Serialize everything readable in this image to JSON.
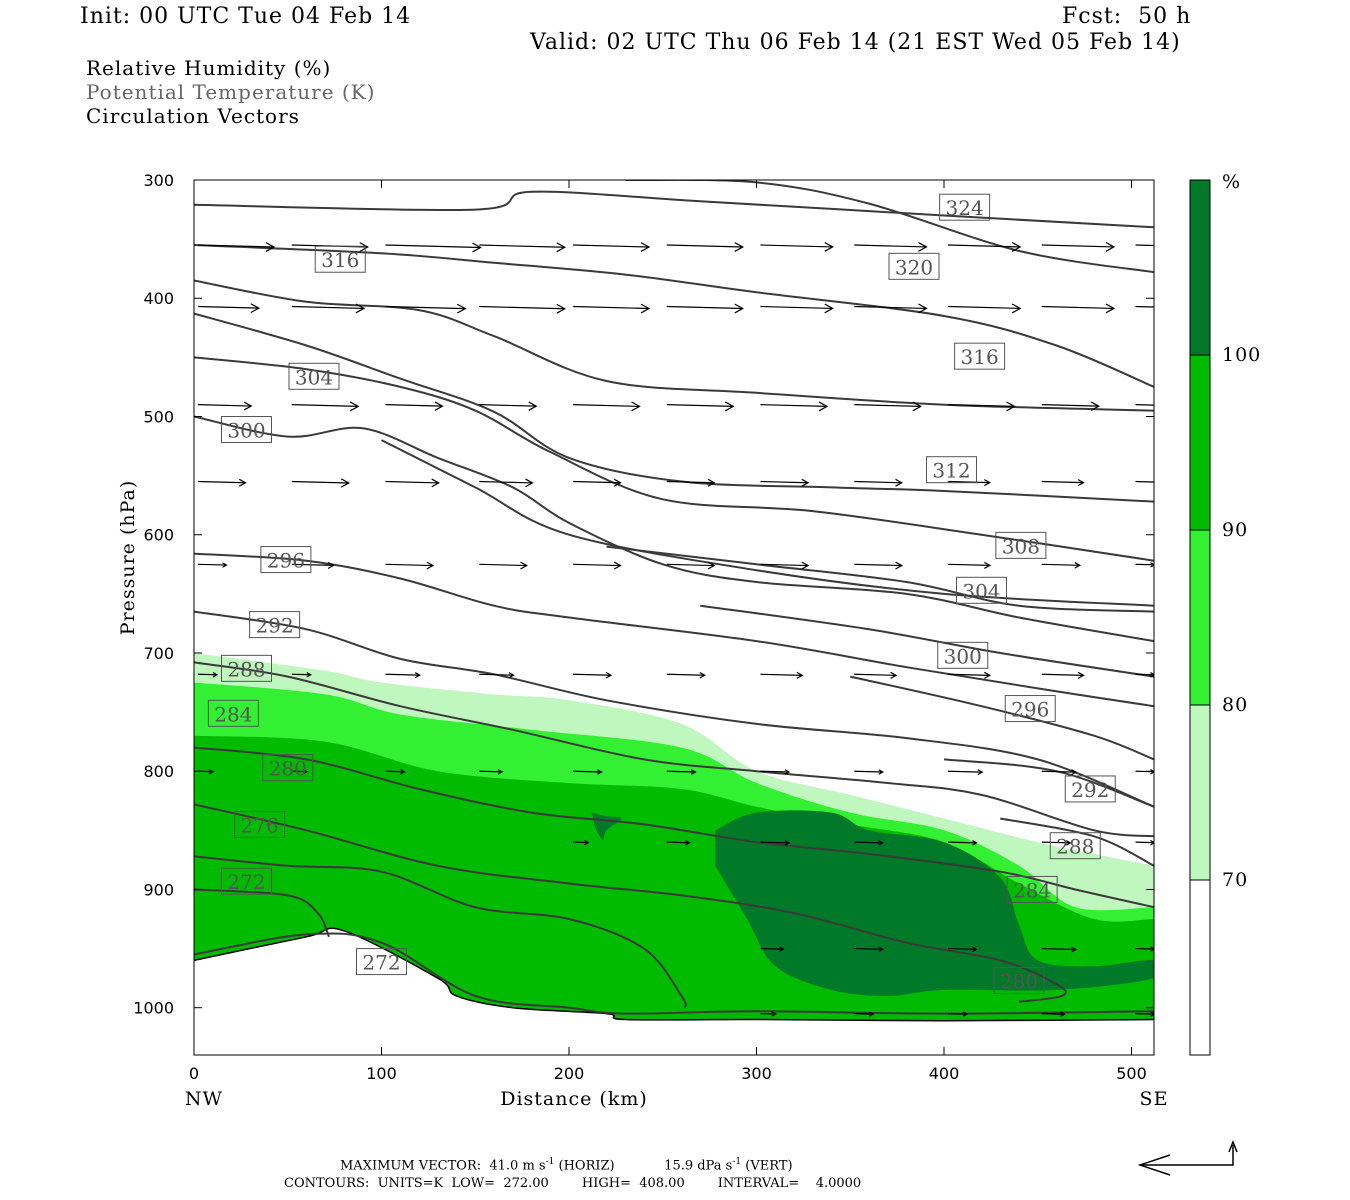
{
  "header": {
    "init": "Init: 00 UTC Tue 04 Feb 14",
    "fcst": "Fcst:  50 h",
    "valid": "Valid: 02 UTC Thu 06 Feb 14 (21 EST Wed 05 Feb 14)",
    "fields": [
      "Relative Humidity (%)",
      "Potential Temperature (K)",
      "Circulation Vectors"
    ]
  },
  "footer": {
    "max_vector": "MAXIMUM VECTOR:  41.0 m s",
    "max_vector_sup": "-1",
    "max_vector_horiz": " (HORIZ)",
    "max_vector_vert": "15.9 dPa s",
    "max_vector_vert_sup": "-1",
    "max_vector_vert_suffix": " (VERT)",
    "contours": "CONTOURS:  UNITS=K  LOW=  272.00        HIGH=  408.00        INTERVAL=    4.0000"
  },
  "colors": {
    "rh_70": "#bff7bf",
    "rh_80": "#33f033",
    "rh_90": "#00bb00",
    "rh_100": "#007a28",
    "theta_line": "#3a3a3a",
    "theta_label": "#555555"
  },
  "chart_data": {
    "type": "cross-section",
    "xlabel": "Distance (km)",
    "ylabel": "Pressure (hPa)",
    "x_ticks": [
      0,
      100,
      200,
      300,
      400,
      500
    ],
    "y_ticks": [
      300,
      400,
      500,
      600,
      700,
      800,
      900,
      1000
    ],
    "xlim": [
      0,
      512
    ],
    "ylim": [
      1040,
      300
    ],
    "x_end_labels": {
      "left": "NW",
      "right": "SE"
    },
    "colorbar": {
      "unit": "%",
      "levels": [
        70,
        80,
        90,
        100
      ]
    },
    "rh_shading": [
      {
        "level": 70,
        "top": [
          [
            0,
            700
          ],
          [
            70,
            715
          ],
          [
            100,
            725
          ],
          [
            160,
            735
          ],
          [
            200,
            740
          ],
          [
            260,
            760
          ],
          [
            300,
            800
          ],
          [
            350,
            820
          ],
          [
            400,
            840
          ],
          [
            450,
            860
          ],
          [
            480,
            870
          ],
          [
            512,
            880
          ]
        ]
      },
      {
        "level": 80,
        "top": [
          [
            0,
            725
          ],
          [
            70,
            735
          ],
          [
            110,
            752
          ],
          [
            180,
            765
          ],
          [
            260,
            780
          ],
          [
            300,
            810
          ],
          [
            350,
            835
          ],
          [
            400,
            850
          ],
          [
            440,
            880
          ],
          [
            470,
            915
          ],
          [
            512,
            915
          ]
        ]
      },
      {
        "level": 90,
        "top": [
          [
            0,
            770
          ],
          [
            70,
            775
          ],
          [
            130,
            800
          ],
          [
            200,
            810
          ],
          [
            260,
            815
          ],
          [
            300,
            830
          ],
          [
            350,
            845
          ],
          [
            400,
            860
          ],
          [
            440,
            895
          ],
          [
            480,
            925
          ],
          [
            512,
            925
          ]
        ]
      }
    ],
    "theta_contours": [
      {
        "label": "324",
        "label_at": [
          411,
          323
        ],
        "points": [
          [
            0,
            321
          ],
          [
            150,
            325
          ],
          [
            180,
            310
          ],
          [
            270,
            318
          ],
          [
            400,
            330
          ],
          [
            512,
            340
          ]
        ]
      },
      {
        "label": "320",
        "label_at": [
          384,
          373
        ],
        "points": [
          [
            230,
            300
          ],
          [
            300,
            302
          ],
          [
            360,
            320
          ],
          [
            440,
            360
          ],
          [
            512,
            378
          ]
        ]
      },
      {
        "label": "316",
        "label_at": [
          78,
          367
        ],
        "points": [
          [
            0,
            355
          ],
          [
            100,
            362
          ],
          [
            160,
            370
          ],
          [
            230,
            380
          ],
          [
            300,
            395
          ],
          [
            400,
            415
          ],
          [
            460,
            440
          ],
          [
            512,
            475
          ]
        ]
      },
      {
        "label": "316",
        "label_at": [
          419,
          449
        ],
        "points": [
          [
            0,
            385
          ],
          [
            60,
            403
          ],
          [
            120,
            410
          ],
          [
            160,
            432
          ],
          [
            220,
            470
          ],
          [
            300,
            480
          ],
          [
            400,
            490
          ],
          [
            512,
            495
          ]
        ]
      },
      {
        "label": "304",
        "label_at": [
          64,
          466
        ],
        "points": [
          [
            0,
            413
          ],
          [
            60,
            440
          ],
          [
            110,
            468
          ],
          [
            160,
            496
          ],
          [
            200,
            535
          ],
          [
            260,
            555
          ],
          [
            340,
            560
          ],
          [
            400,
            563
          ],
          [
            512,
            572
          ]
        ]
      },
      {
        "label": "312",
        "label_at": [
          404,
          545
        ],
        "points": [
          [
            0,
            450
          ],
          [
            60,
            460
          ],
          [
            110,
            475
          ],
          [
            150,
            495
          ],
          [
            190,
            530
          ],
          [
            250,
            570
          ],
          [
            330,
            580
          ],
          [
            420,
            600
          ],
          [
            512,
            622
          ]
        ]
      },
      {
        "label": "300",
        "label_at": [
          28,
          511
        ],
        "points": [
          [
            0,
            500
          ],
          [
            50,
            517
          ],
          [
            90,
            510
          ],
          [
            130,
            535
          ],
          [
            170,
            560
          ],
          [
            200,
            590
          ],
          [
            250,
            625
          ],
          [
            300,
            640
          ],
          [
            380,
            650
          ],
          [
            440,
            670
          ],
          [
            512,
            690
          ]
        ]
      },
      {
        "label": "308",
        "label_at": [
          441,
          609
        ],
        "points": [
          [
            100,
            520
          ],
          [
            150,
            560
          ],
          [
            200,
            600
          ],
          [
            300,
            630
          ],
          [
            400,
            650
          ],
          [
            512,
            660
          ]
        ]
      },
      {
        "label": "296",
        "label_at": [
          49,
          621
        ],
        "points": [
          [
            0,
            616
          ],
          [
            60,
            622
          ],
          [
            110,
            637
          ],
          [
            160,
            660
          ],
          [
            200,
            670
          ],
          [
            300,
            690
          ],
          [
            380,
            712
          ],
          [
            450,
            730
          ],
          [
            512,
            745
          ]
        ]
      },
      {
        "label": "304",
        "label_at": [
          420,
          647
        ],
        "points": [
          [
            220,
            610
          ],
          [
            300,
            625
          ],
          [
            380,
            640
          ],
          [
            440,
            660
          ],
          [
            512,
            665
          ]
        ]
      },
      {
        "label": "292",
        "label_at": [
          43,
          676
        ],
        "points": [
          [
            0,
            665
          ],
          [
            60,
            680
          ],
          [
            110,
            705
          ],
          [
            160,
            718
          ],
          [
            220,
            740
          ],
          [
            300,
            760
          ],
          [
            380,
            772
          ],
          [
            450,
            790
          ],
          [
            512,
            830
          ]
        ]
      },
      {
        "label": "300",
        "label_at": [
          410,
          702
        ],
        "points": [
          [
            270,
            660
          ],
          [
            360,
            680
          ],
          [
            430,
            700
          ],
          [
            512,
            720
          ]
        ]
      },
      {
        "label": "288",
        "label_at": [
          28,
          713
        ],
        "points": [
          [
            0,
            708
          ],
          [
            50,
            720
          ],
          [
            110,
            745
          ],
          [
            170,
            765
          ],
          [
            240,
            790
          ],
          [
            300,
            800
          ],
          [
            370,
            810
          ],
          [
            420,
            820
          ],
          [
            480,
            850
          ],
          [
            512,
            855
          ]
        ]
      },
      {
        "label": "296",
        "label_at": [
          446,
          747
        ],
        "points": [
          [
            350,
            720
          ],
          [
            420,
            745
          ],
          [
            480,
            770
          ],
          [
            512,
            790
          ]
        ]
      },
      {
        "label": "284",
        "label_at": [
          21,
          751
        ],
        "points": [
          [
            0,
            780
          ],
          [
            60,
            790
          ],
          [
            120,
            815
          ],
          [
            180,
            835
          ],
          [
            240,
            845
          ],
          [
            300,
            860
          ],
          [
            360,
            870
          ],
          [
            430,
            885
          ],
          [
            470,
            900
          ],
          [
            512,
            915
          ]
        ]
      },
      {
        "label": "292",
        "label_at": [
          478,
          815
        ],
        "points": [
          [
            400,
            790
          ],
          [
            460,
            800
          ],
          [
            512,
            830
          ]
        ]
      },
      {
        "label": "280",
        "label_at": [
          50,
          797
        ],
        "points": [
          [
            0,
            828
          ],
          [
            60,
            850
          ],
          [
            130,
            880
          ],
          [
            200,
            895
          ],
          [
            260,
            905
          ],
          [
            320,
            920
          ],
          [
            380,
            945
          ],
          [
            430,
            960
          ],
          [
            460,
            980
          ],
          [
            463,
            990
          ],
          [
            440,
            995
          ]
        ]
      },
      {
        "label": "288",
        "label_at": [
          470,
          863
        ],
        "points": [
          [
            430,
            840
          ],
          [
            480,
            855
          ],
          [
            512,
            880
          ]
        ]
      },
      {
        "label": "276",
        "label_at": [
          35,
          845
        ],
        "points": [
          [
            0,
            872
          ],
          [
            50,
            880
          ],
          [
            100,
            885
          ],
          [
            150,
            915
          ],
          [
            200,
            925
          ],
          [
            240,
            950
          ],
          [
            260,
            990
          ],
          [
            262,
            1000
          ]
        ]
      },
      {
        "label": "284",
        "label_at": [
          447,
          900
        ],
        "points": []
      },
      {
        "label": "272",
        "label_at": [
          28,
          893
        ],
        "points": [
          [
            0,
            900
          ],
          [
            50,
            905
          ],
          [
            66,
            920
          ],
          [
            72,
            940
          ]
        ]
      },
      {
        "label": "272",
        "label_at": [
          100,
          961
        ],
        "points": [
          [
            0,
            955
          ],
          [
            60,
            938
          ],
          [
            100,
            945
          ],
          [
            150,
            990
          ],
          [
            200,
            1000
          ],
          [
            230,
            1005
          ],
          [
            300,
            1003
          ],
          [
            400,
            1005
          ],
          [
            512,
            1003
          ]
        ]
      },
      {
        "label": "280",
        "label_at": [
          440,
          977
        ],
        "points": []
      }
    ],
    "vector_rows": [
      {
        "p": 355,
        "x": [
          0,
          50,
          100,
          150,
          200,
          250,
          300,
          350,
          400,
          450,
          500
        ],
        "dx": [
          40,
          40,
          50,
          45,
          40,
          40,
          38,
          38,
          38,
          38,
          20
        ]
      },
      {
        "p": 407,
        "x": [
          0,
          50,
          100,
          150,
          200,
          250,
          300,
          350,
          400,
          450,
          500
        ],
        "dx": [
          32,
          38,
          42,
          45,
          40,
          40,
          38,
          38,
          38,
          38,
          20
        ]
      },
      {
        "p": 490,
        "x": [
          0,
          50,
          100,
          150,
          200,
          250,
          300,
          350,
          400,
          450,
          500
        ],
        "dx": [
          28,
          35,
          30,
          30,
          35,
          35,
          35,
          35,
          35,
          30,
          20
        ]
      },
      {
        "p": 555,
        "x": [
          0,
          50,
          100,
          150,
          200,
          250,
          300,
          350,
          400,
          450,
          500
        ],
        "dx": [
          25,
          30,
          28,
          28,
          25,
          25,
          25,
          25,
          22,
          22,
          15
        ]
      },
      {
        "p": 625,
        "x": [
          0,
          50,
          100,
          150,
          200,
          250,
          300,
          350,
          400,
          450,
          500
        ],
        "dx": [
          15,
          22,
          25,
          25,
          25,
          25,
          25,
          25,
          22,
          20,
          10
        ]
      },
      {
        "p": 718,
        "x": [
          0,
          50,
          100,
          150,
          200,
          250,
          300,
          350,
          400,
          450,
          500
        ],
        "dx": [
          10,
          10,
          18,
          18,
          20,
          20,
          22,
          22,
          22,
          22,
          10
        ]
      },
      {
        "p": 800,
        "x": [
          0,
          50,
          100,
          150,
          200,
          250,
          300,
          350,
          400,
          450,
          500
        ],
        "dx": [
          8,
          8,
          10,
          12,
          15,
          15,
          15,
          15,
          18,
          18,
          10
        ]
      },
      {
        "p": 860,
        "x": [
          200,
          250,
          300,
          350,
          400,
          450,
          500
        ],
        "dx": [
          8,
          12,
          15,
          15,
          15,
          15,
          10
        ]
      },
      {
        "p": 950,
        "x": [
          300,
          350,
          400,
          450,
          500
        ],
        "dx": [
          12,
          15,
          15,
          18,
          10
        ]
      },
      {
        "p": 1005,
        "x": [
          300,
          350,
          400,
          450,
          500
        ],
        "dx": [
          8,
          10,
          10,
          12,
          10
        ]
      }
    ],
    "surface": [
      [
        0,
        960
      ],
      [
        60,
        940
      ],
      [
        80,
        935
      ],
      [
        130,
        975
      ],
      [
        140,
        990
      ],
      [
        170,
        1000
      ],
      [
        220,
        1005
      ],
      [
        230,
        1010
      ],
      [
        300,
        1010
      ],
      [
        400,
        1011
      ],
      [
        512,
        1010
      ]
    ]
  }
}
